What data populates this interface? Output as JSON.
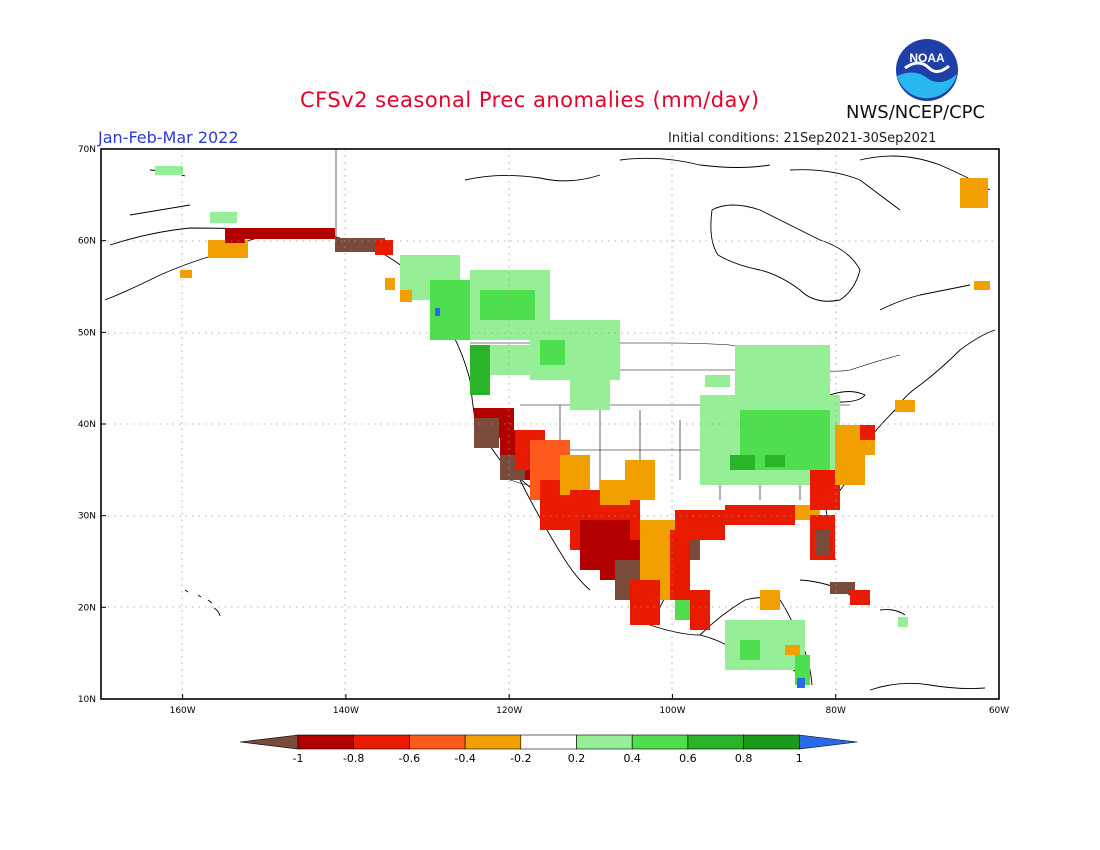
{
  "header": {
    "title": "CFSv2 seasonal Prec anomalies (mm/day)",
    "period": "Jan-Feb-Mar 2022",
    "initial_conditions": "Initial conditions: 21Sep2021-30Sep2021",
    "agency": "NWS/NCEP/CPC",
    "logo_text": "NOAA"
  },
  "map": {
    "lat_labels": [
      "70N",
      "60N",
      "50N",
      "40N",
      "30N",
      "20N",
      "10N"
    ],
    "lon_labels": [
      "160W",
      "140W",
      "120W",
      "100W",
      "80W",
      "60W"
    ],
    "lat_range": [
      10,
      70
    ],
    "lon_range": [
      -170,
      -60
    ],
    "grid": "dotted"
  },
  "colorbar": {
    "labels": [
      "-1",
      "-0.8",
      "-0.6",
      "-0.4",
      "-0.2",
      "0.2",
      "0.4",
      "0.6",
      "0.8",
      "1"
    ],
    "colors": [
      "#7a4a3a",
      "#b20000",
      "#e81a00",
      "#ff5a1e",
      "#f2a000",
      "#ffffff",
      "#96ee96",
      "#4ede4e",
      "#2ab42a",
      "#1a9a1a",
      "#2a6ae8"
    ]
  }
}
